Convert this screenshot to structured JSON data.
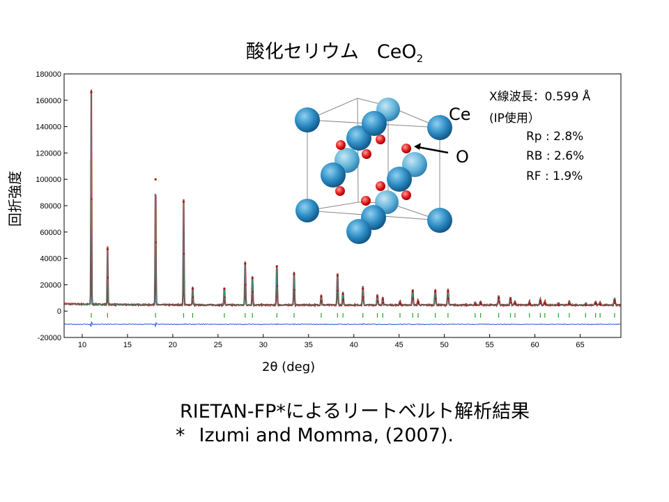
{
  "title": {
    "text": "酸化セリウム",
    "formula_main": "CeO",
    "formula_sub": "2"
  },
  "colors": {
    "observed": "#b01010",
    "calculated": "#3a8f86",
    "difference": "#1f4fd8",
    "reflections": "#2aa02a",
    "ce_atom": "#1e7fb4",
    "o_atom": "#d61f1f"
  },
  "chart_data": {
    "type": "line",
    "xlabel": "2θ   (deg)",
    "ylabel": "回折強度",
    "xlim": [
      8.0,
      69.5
    ],
    "ylim": [
      -20000,
      180000
    ],
    "x_ticks": [
      10,
      15,
      20,
      25,
      30,
      35,
      40,
      45,
      50,
      55,
      60,
      65
    ],
    "y_ticks": [
      -20000,
      0,
      20000,
      40000,
      60000,
      80000,
      100000,
      120000,
      140000,
      160000,
      180000
    ],
    "background_level": 4000,
    "difference_offset": -10000,
    "peaks": [
      {
        "x": 11.0,
        "y": 166000
      },
      {
        "x": 12.8,
        "y": 47000
      },
      {
        "x": 18.1,
        "y": 100000
      },
      {
        "x": 21.2,
        "y": 83000
      },
      {
        "x": 22.2,
        "y": 17000
      },
      {
        "x": 25.7,
        "y": 17000
      },
      {
        "x": 28.0,
        "y": 36000
      },
      {
        "x": 28.8,
        "y": 25000
      },
      {
        "x": 31.5,
        "y": 34000
      },
      {
        "x": 33.4,
        "y": 28000
      },
      {
        "x": 36.4,
        "y": 11000
      },
      {
        "x": 38.2,
        "y": 27000
      },
      {
        "x": 38.8,
        "y": 13000
      },
      {
        "x": 41.0,
        "y": 17000
      },
      {
        "x": 42.6,
        "y": 11000
      },
      {
        "x": 43.2,
        "y": 9000
      },
      {
        "x": 45.1,
        "y": 6000
      },
      {
        "x": 46.5,
        "y": 15000
      },
      {
        "x": 47.1,
        "y": 7000
      },
      {
        "x": 49.0,
        "y": 15000
      },
      {
        "x": 50.4,
        "y": 15000
      },
      {
        "x": 53.4,
        "y": 5000
      },
      {
        "x": 54.0,
        "y": 6000
      },
      {
        "x": 56.0,
        "y": 10000
      },
      {
        "x": 57.3,
        "y": 9000
      },
      {
        "x": 57.8,
        "y": 6000
      },
      {
        "x": 59.4,
        "y": 5500
      },
      {
        "x": 60.6,
        "y": 7500
      },
      {
        "x": 61.1,
        "y": 6000
      },
      {
        "x": 62.6,
        "y": 4500
      },
      {
        "x": 63.8,
        "y": 5500
      },
      {
        "x": 65.6,
        "y": 4500
      },
      {
        "x": 66.7,
        "y": 6000
      },
      {
        "x": 67.2,
        "y": 5000
      },
      {
        "x": 68.8,
        "y": 8000
      }
    ],
    "reflection_positions": [
      11.0,
      12.8,
      18.1,
      21.2,
      22.2,
      25.7,
      28.0,
      28.8,
      31.5,
      33.4,
      36.4,
      38.2,
      38.8,
      41.0,
      42.6,
      43.2,
      45.1,
      46.5,
      47.1,
      49.0,
      50.4,
      53.4,
      54.0,
      56.0,
      57.3,
      57.8,
      59.4,
      60.6,
      61.1,
      62.6,
      63.8,
      65.6,
      66.7,
      67.2,
      68.8
    ],
    "series": [
      {
        "kind": "observed",
        "color": "#b01010"
      },
      {
        "kind": "calculated",
        "color": "#3a8f86"
      },
      {
        "kind": "difference",
        "color": "#1f4fd8"
      },
      {
        "kind": "reflection_markers",
        "color": "#2aa02a"
      }
    ]
  },
  "crystal": {
    "ce_label": "Ce",
    "o_label": "O"
  },
  "stats": {
    "wavelength": "X線波長：0.599  Å",
    "ip": "(IP使用）",
    "rp": "Rp :  2.8%",
    "rb": "RB :  2.6%",
    "rf": "RF :  1.9%"
  },
  "caption": {
    "line1": "RIETAN-FP*によるリートベルト解析結果",
    "line2_star": "*",
    "line2_ref": "Izumi and Momma, (2007)."
  }
}
